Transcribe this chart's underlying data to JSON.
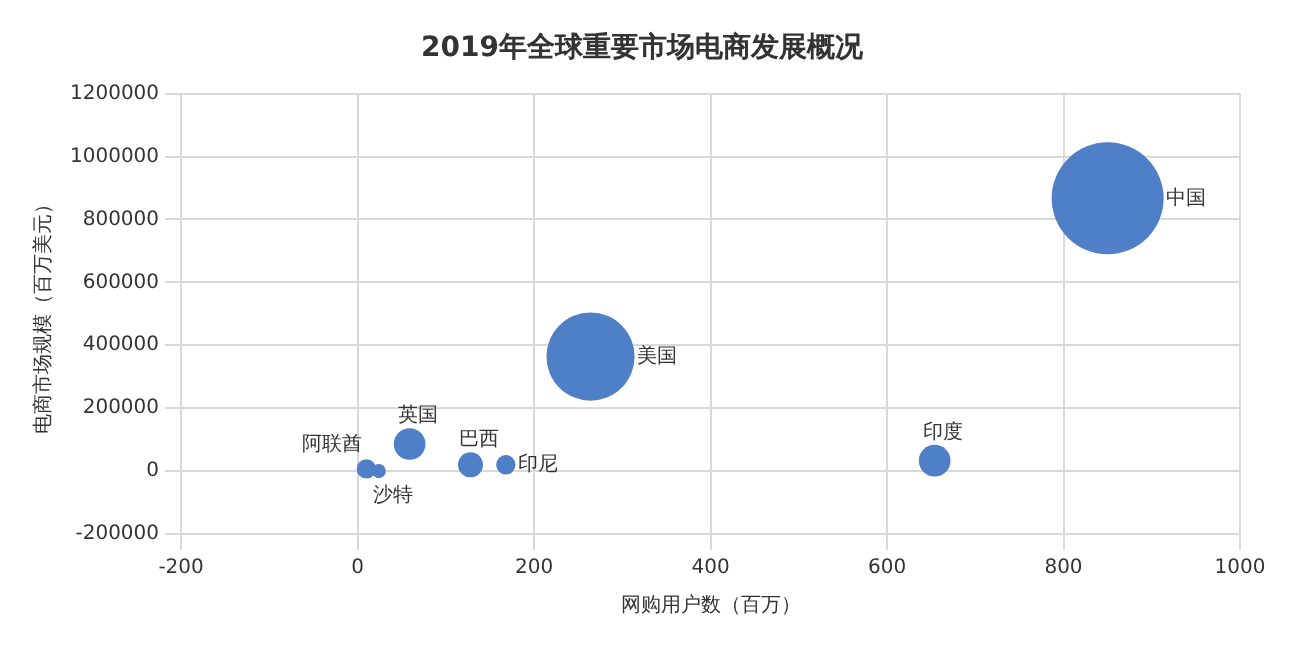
{
  "chart_data": {
    "type": "bubble",
    "title": "2019年全球重要市场电商发展概况",
    "xlabel": "网购用户数（百万）",
    "ylabel": "电商市场规模（百万美元）",
    "x": [
      850,
      264,
      654,
      59,
      128,
      168,
      10,
      24
    ],
    "values": [
      867000,
      364000,
      33000,
      86000,
      20000,
      20000,
      7000,
      0
    ],
    "sizes": [
      1,
      0.62,
      0.08,
      0.08,
      0.05,
      0.03,
      0.03,
      0.016
    ],
    "color": "#4f7fc6",
    "xlim": [
      -200,
      1000
    ],
    "xticks": [
      -200,
      0,
      200,
      400,
      600,
      800,
      1000
    ],
    "ylim": [
      -200000,
      1200000
    ],
    "yticks": [
      -200000,
      0,
      200000,
      400000,
      600000,
      800000,
      1000000,
      1200000
    ],
    "grid": true,
    "legend": false,
    "annotations": [
      {
        "text": "中国",
        "x": 850,
        "y": 867000
      },
      {
        "text": "美国",
        "x": 264,
        "y": 364000
      },
      {
        "text": "印度",
        "x": 654,
        "y": 33000
      },
      {
        "text": "英国",
        "x": 59,
        "y": 86000
      },
      {
        "text": "巴西",
        "x": 128,
        "y": 20000
      },
      {
        "text": "印尼",
        "x": 168,
        "y": 20000
      },
      {
        "text": "阿联酋",
        "x": 10,
        "y": 7000
      },
      {
        "text": "沙特",
        "x": 24,
        "y": 0
      }
    ]
  }
}
